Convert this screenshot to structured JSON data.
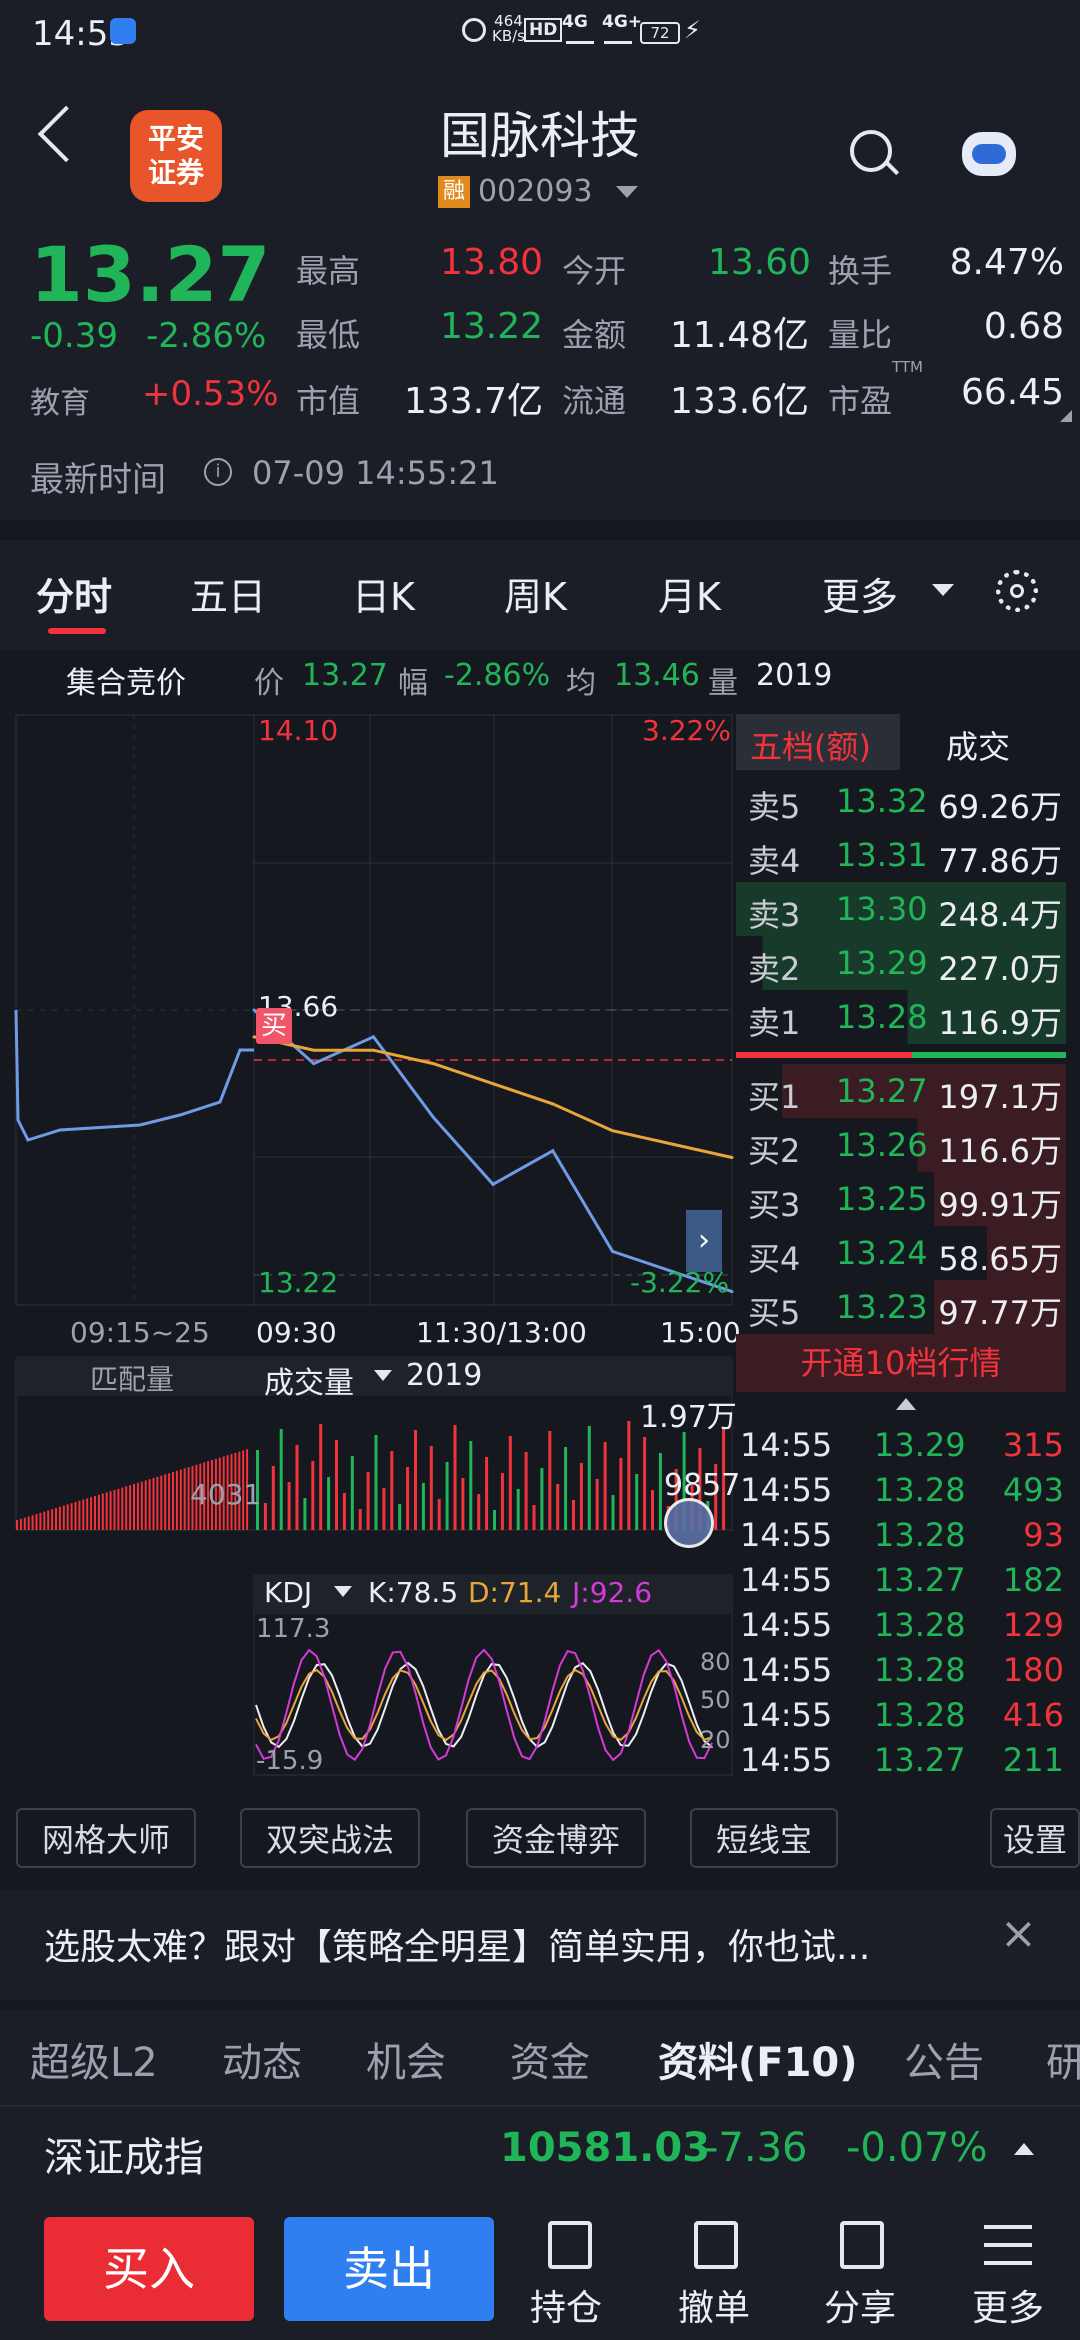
{
  "status": {
    "time": "14:55",
    "speed_top": "464",
    "speed_bottom": "KB/s",
    "hd_label": "HD",
    "net1": "4G",
    "net2": "4G+",
    "battery": "72"
  },
  "header": {
    "title": "国脉科技",
    "broker_line1": "平安",
    "broker_line2": "证券",
    "rong_badge": "融",
    "code": "002093"
  },
  "quote": {
    "price": "13.27",
    "change": "-0.39",
    "change_pct": "-2.86%",
    "sector_label": "教育",
    "sector_pct": "+0.53%",
    "high_label": "最高",
    "high": "13.80",
    "open_label": "今开",
    "open": "13.60",
    "turnover_label": "换手",
    "turnover": "8.47%",
    "low_label": "最低",
    "low": "13.22",
    "amount_label": "金额",
    "amount": "11.48亿",
    "volratio_label": "量比",
    "volratio": "0.68",
    "mcap_label": "市值",
    "mcap": "133.7亿",
    "float_label": "流通",
    "float": "133.6亿",
    "pe_label": "市盈",
    "pe_sup": "TTM",
    "pe": "66.45",
    "time_label": "最新时间",
    "time_value": "07-09 14:55:21"
  },
  "tabs": [
    "分时",
    "五日",
    "日K",
    "周K",
    "月K",
    "更多"
  ],
  "info_line": {
    "auction_label": "集合竞价",
    "price_label": "价",
    "price": "13.27",
    "range_label": "幅",
    "range": "-2.86%",
    "avg_label": "均",
    "avg": "13.46",
    "vol_label": "量",
    "vol": "2019"
  },
  "chart": {
    "top_price": "14.10",
    "top_pct": "3.22%",
    "bottom_price": "13.22",
    "bottom_pct": "-3.22%",
    "marker_price": "13.66",
    "buy_tag": "买",
    "x_labels": [
      "09:15~25",
      "09:30",
      "11:30/13:00",
      "15:00"
    ],
    "vol_left_label": "匹配量",
    "vol_dropdown": "成交量",
    "vol_value": "2019",
    "vol_max": "1.97万",
    "vol_mid": "9857",
    "auction_vol": "4031",
    "kdj_label": "KDJ",
    "k": "K:78.5",
    "d": "D:71.4",
    "j": "J:92.6",
    "kdj_top": "117.3",
    "kdj_bottom": "-15.9",
    "kdj_80": "80",
    "kdj_50": "50",
    "kdj_20": "20"
  },
  "chart_data": {
    "type": "line",
    "x": [
      "09:30",
      "10:00",
      "10:30",
      "11:00",
      "11:30/13:00",
      "13:30",
      "14:00",
      "14:30",
      "15:00"
    ],
    "series": [
      {
        "values": [
          13.66,
          13.58,
          13.62,
          13.5,
          13.4,
          13.45,
          13.3,
          13.27,
          13.24
        ]
      },
      {
        "values": [
          13.62,
          13.6,
          13.6,
          13.58,
          13.55,
          13.52,
          13.48,
          13.46,
          13.44
        ]
      }
    ],
    "ylim": [
      13.22,
      14.1
    ]
  },
  "orderbook": {
    "tab_active": "五档(额)",
    "tab_other": "成交",
    "sells": [
      {
        "label": "卖5",
        "price": "13.32",
        "vol": "69.26万"
      },
      {
        "label": "卖4",
        "price": "13.31",
        "vol": "77.86万"
      },
      {
        "label": "卖3",
        "price": "13.30",
        "vol": "248.4万"
      },
      {
        "label": "卖2",
        "price": "13.29",
        "vol": "227.0万"
      },
      {
        "label": "卖1",
        "price": "13.28",
        "vol": "116.9万"
      }
    ],
    "buys": [
      {
        "label": "买1",
        "price": "13.27",
        "vol": "197.1万"
      },
      {
        "label": "买2",
        "price": "13.26",
        "vol": "116.6万"
      },
      {
        "label": "买3",
        "price": "13.25",
        "vol": "99.91万"
      },
      {
        "label": "买4",
        "price": "13.24",
        "vol": "58.65万"
      },
      {
        "label": "买5",
        "price": "13.23",
        "vol": "97.77万"
      }
    ],
    "level10_button": "开通10档行情"
  },
  "trades": [
    {
      "time": "14:55",
      "price": "13.29",
      "vol": "315",
      "color": "#f2333c"
    },
    {
      "time": "14:55",
      "price": "13.28",
      "vol": "493",
      "color": "#21b55a"
    },
    {
      "time": "14:55",
      "price": "13.28",
      "vol": "93",
      "color": "#f2333c"
    },
    {
      "time": "14:55",
      "price": "13.27",
      "vol": "182",
      "color": "#21b55a"
    },
    {
      "time": "14:55",
      "price": "13.28",
      "vol": "129",
      "color": "#f2333c"
    },
    {
      "time": "14:55",
      "price": "13.28",
      "vol": "180",
      "color": "#f2333c"
    },
    {
      "time": "14:55",
      "price": "13.28",
      "vol": "416",
      "color": "#f2333c"
    },
    {
      "time": "14:55",
      "price": "13.27",
      "vol": "211",
      "color": "#21b55a"
    }
  ],
  "tools": [
    "网格大师",
    "双突战法",
    "资金博弈",
    "短线宝",
    "设置"
  ],
  "banner": {
    "text": "选股太难？跟对【策略全明星】简单实用，你也试..."
  },
  "bottom_tabs": [
    "超级L2",
    "动态",
    "机会",
    "资金",
    "资料(F10)",
    "公告",
    "研"
  ],
  "index": {
    "name": "深证成指",
    "value": "10581.03",
    "change": "-7.36",
    "pct": "-0.07%"
  },
  "actions": {
    "buy": "买入",
    "sell": "卖出",
    "hold": "持仓",
    "cancel": "撤单",
    "share": "分享",
    "more": "更多"
  },
  "colors": {
    "up": "#f2333c",
    "down": "#21b55a",
    "price_line": "#6f9be6",
    "avg_line": "#e7a53a",
    "sell_button": "#2f7ff0",
    "buy_button": "#ea2d34"
  }
}
